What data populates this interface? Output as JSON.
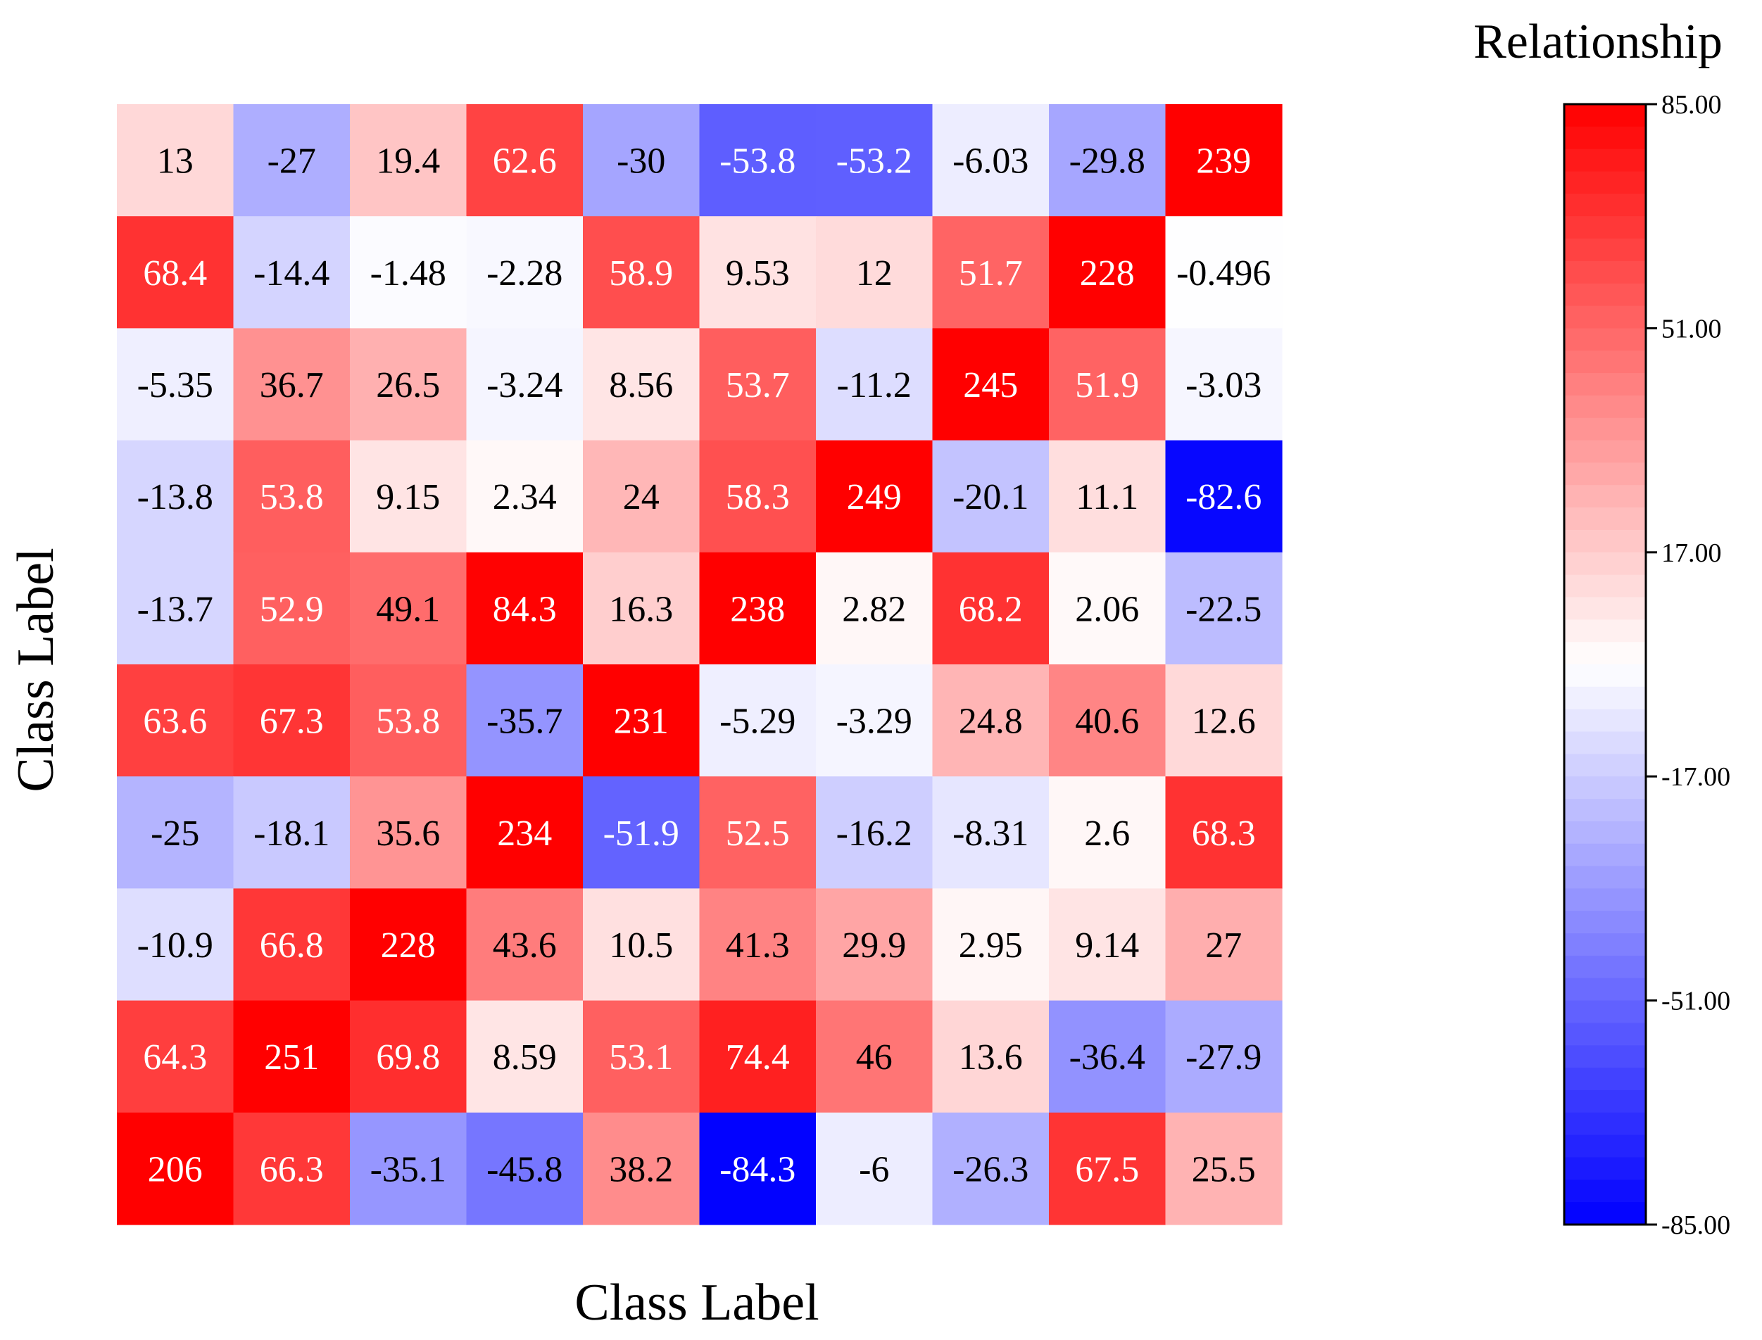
{
  "chart_data": {
    "type": "heatmap",
    "title": "",
    "xlabel": "Class Label",
    "ylabel": "Class Label",
    "colorbar": {
      "label": "Relationship",
      "min": -85,
      "max": 85,
      "ticks": [
        "85.00",
        "51.00",
        "17.00",
        "-17.00",
        "-51.00",
        "-85.00"
      ],
      "low_color": "#0000ff",
      "mid_color": "#ffffff",
      "high_color": "#ff0000"
    },
    "values": [
      [
        13,
        -27,
        19.4,
        62.6,
        -30,
        -53.8,
        -53.2,
        -6.03,
        -29.8,
        239
      ],
      [
        68.4,
        -14.4,
        -1.48,
        -2.28,
        58.9,
        9.53,
        12,
        51.7,
        228,
        -0.496
      ],
      [
        -5.35,
        36.7,
        26.5,
        -3.24,
        8.56,
        53.7,
        -11.2,
        245,
        51.9,
        -3.03
      ],
      [
        -13.8,
        53.8,
        9.15,
        2.34,
        24,
        58.3,
        249,
        -20.1,
        11.1,
        -82.6
      ],
      [
        -13.7,
        52.9,
        49.1,
        84.3,
        16.3,
        238,
        2.82,
        68.2,
        2.06,
        -22.5
      ],
      [
        63.6,
        67.3,
        53.8,
        -35.7,
        231,
        -5.29,
        -3.29,
        24.8,
        40.6,
        12.6
      ],
      [
        -25,
        -18.1,
        35.6,
        234,
        -51.9,
        52.5,
        -16.2,
        -8.31,
        2.6,
        68.3
      ],
      [
        -10.9,
        66.8,
        228,
        43.6,
        10.5,
        41.3,
        29.9,
        2.95,
        9.14,
        27
      ],
      [
        64.3,
        251,
        69.8,
        8.59,
        53.1,
        74.4,
        46,
        13.6,
        -36.4,
        -27.9
      ],
      [
        206,
        66.3,
        -35.1,
        -45.8,
        38.2,
        -84.3,
        -6,
        -26.3,
        67.5,
        25.5
      ]
    ]
  }
}
